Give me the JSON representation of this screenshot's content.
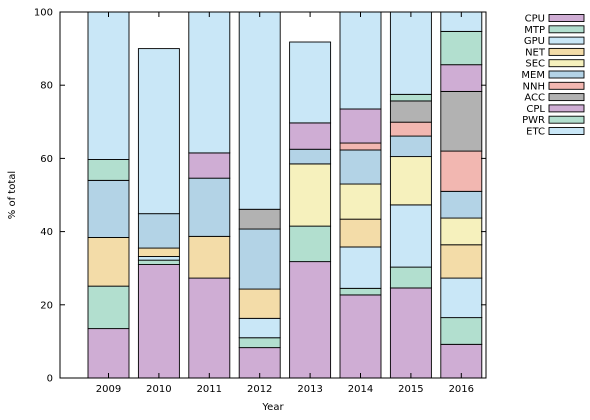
{
  "chart_data": {
    "type": "bar",
    "stacked": true,
    "title": "",
    "xlabel": "Year",
    "ylabel": "% of total",
    "ylim": [
      0,
      100
    ],
    "yticks": [
      0,
      20,
      40,
      60,
      80,
      100
    ],
    "grid": false,
    "legend_position": "right",
    "categories": [
      "2009",
      "2010",
      "2011",
      "2012",
      "2013",
      "2014",
      "2015",
      "2016"
    ],
    "series": [
      {
        "name": "CPU",
        "color": "#cfadd4",
        "values": [
          13.5,
          31.0,
          27.3,
          8.3,
          31.8,
          22.7,
          24.6,
          9.2
        ]
      },
      {
        "name": "MTP",
        "color": "#b2dfcf",
        "values": [
          11.6,
          1.2,
          0.0,
          2.7,
          9.7,
          1.8,
          5.7,
          7.3
        ]
      },
      {
        "name": "GPU",
        "color": "#c9e7f7",
        "values": [
          0.0,
          1.0,
          0.0,
          5.3,
          0.0,
          11.3,
          17.0,
          10.8
        ]
      },
      {
        "name": "NET",
        "color": "#f3dca8",
        "values": [
          13.3,
          2.3,
          11.4,
          8.0,
          0.0,
          7.6,
          0.0,
          9.1
        ]
      },
      {
        "name": "SEC",
        "color": "#f6f1bd",
        "values": [
          0.0,
          0.0,
          0.0,
          0.0,
          17.0,
          9.6,
          13.2,
          7.3
        ]
      },
      {
        "name": "MEM",
        "color": "#b3d3e6",
        "values": [
          15.6,
          9.4,
          15.9,
          16.4,
          4.0,
          9.3,
          5.6,
          7.3
        ]
      },
      {
        "name": "NNH",
        "color": "#f2b7b1",
        "values": [
          0.0,
          0.0,
          0.0,
          0.0,
          0.0,
          1.9,
          3.8,
          11.0
        ]
      },
      {
        "name": "ACC",
        "color": "#b2b2b2",
        "values": [
          0.0,
          0.0,
          0.0,
          5.4,
          0.0,
          0.0,
          5.8,
          16.3
        ]
      },
      {
        "name": "CPL",
        "color": "#cfadd4",
        "values": [
          0.0,
          0.0,
          6.9,
          0.0,
          7.2,
          9.3,
          0.0,
          7.3
        ]
      },
      {
        "name": "PWR",
        "color": "#b2dfcf",
        "values": [
          5.7,
          0.0,
          0.0,
          0.0,
          0.0,
          0.0,
          1.8,
          9.1
        ]
      },
      {
        "name": "ETC",
        "color": "#c9e7f7",
        "values": [
          40.3,
          45.1,
          38.5,
          53.9,
          22.1,
          26.5,
          22.5,
          5.3
        ]
      }
    ]
  }
}
